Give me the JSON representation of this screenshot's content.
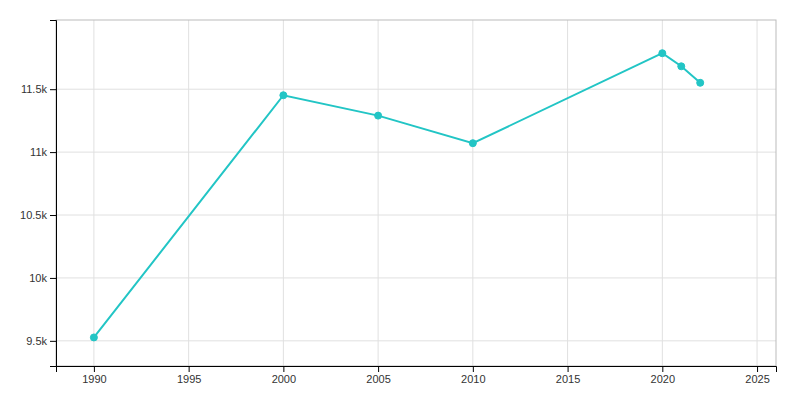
{
  "chart_data": {
    "type": "line",
    "x": [
      1990,
      2000,
      2005,
      2010,
      2020,
      2021,
      2022
    ],
    "values": [
      9527,
      11452,
      11290,
      11071,
      11786,
      11682,
      11551
    ],
    "color": "#22c5c5",
    "marker": "circle",
    "xlim": [
      1988,
      2026
    ],
    "ylim": [
      9300,
      12050
    ],
    "xticks": [
      1990,
      1995,
      2000,
      2005,
      2010,
      2015,
      2020,
      2025
    ],
    "yticks": [
      {
        "value": 9500,
        "label": "9.5k"
      },
      {
        "value": 10000,
        "label": "10k"
      },
      {
        "value": 10500,
        "label": "10.5k"
      },
      {
        "value": 11000,
        "label": "11k"
      },
      {
        "value": 11500,
        "label": "11.5k"
      }
    ],
    "grid": true
  }
}
